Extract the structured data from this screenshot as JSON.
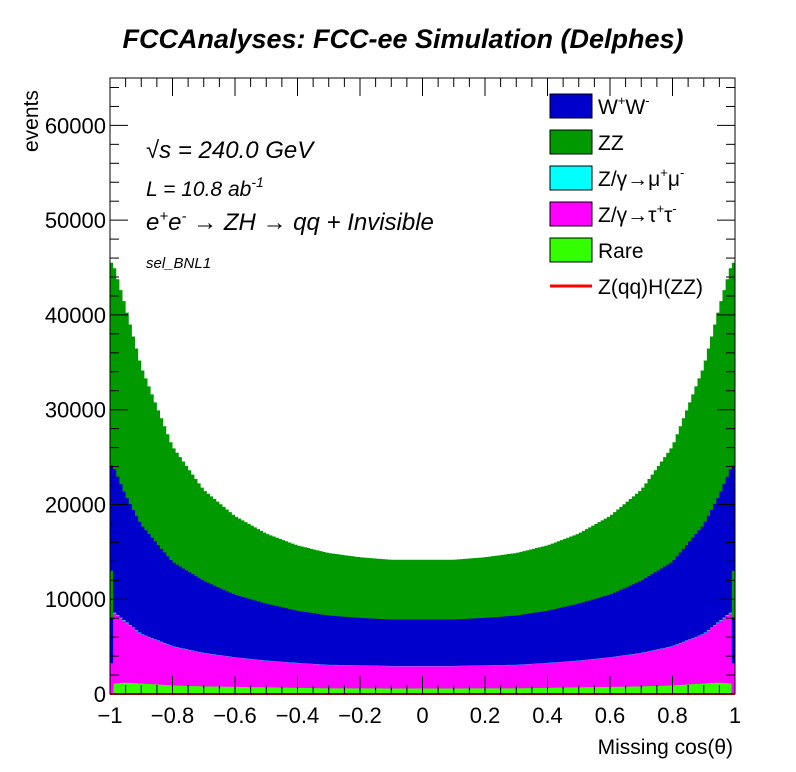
{
  "chart_data": {
    "type": "area",
    "title": "FCCAnalyses: FCC-ee Simulation (Delphes)",
    "xlabel": "Missing cos(θ)",
    "ylabel": "events",
    "xlim": [
      -1,
      1
    ],
    "ylim": [
      0,
      65000
    ],
    "x_ticks": [
      "−1",
      "−0.8",
      "−0.6",
      "−0.4",
      "−0.2",
      "0",
      "0.2",
      "0.4",
      "0.6",
      "0.8",
      "1"
    ],
    "y_ticks": [
      "0",
      "10000",
      "20000",
      "30000",
      "40000",
      "50000",
      "60000"
    ],
    "stacked": true,
    "legend_position": "top-right",
    "annotations": {
      "sqrt_s_symbol": "√s",
      "sqrt_s_value": " = 240.0 GeV",
      "lumi_prefix": "L = 10.8 ab",
      "lumi_exp": "-1",
      "process_e1": "e",
      "process_sup1": "+",
      "process_e2": "e",
      "process_sup2": "-",
      "process_rest": " → ZH  → qq + Invisible",
      "selection": "sel_BNL1"
    },
    "x": [
      -0.99,
      -0.95,
      -0.9,
      -0.8,
      -0.7,
      -0.6,
      -0.5,
      -0.4,
      -0.3,
      -0.2,
      -0.1,
      0.0,
      0.1,
      0.2,
      0.3,
      0.4,
      0.5,
      0.6,
      0.7,
      0.8,
      0.9,
      0.95,
      0.99
    ],
    "series": [
      {
        "name": "Rare",
        "color": "#33ff00",
        "values": [
          1100,
          1200,
          1100,
          900,
          800,
          750,
          700,
          650,
          600,
          600,
          580,
          580,
          580,
          600,
          600,
          650,
          700,
          750,
          800,
          900,
          1100,
          1200,
          1100
        ]
      },
      {
        "name": "Z/γ→τ⁺τ⁻",
        "color": "#ff00ff",
        "values": [
          7500,
          6400,
          5200,
          4100,
          3500,
          3100,
          2800,
          2600,
          2450,
          2400,
          2350,
          2350,
          2350,
          2400,
          2450,
          2600,
          2800,
          3100,
          3500,
          4100,
          5200,
          6400,
          7500
        ]
      },
      {
        "name": "Z/γ→μ⁺μ⁻",
        "color": "#00ffff",
        "values": [
          100,
          80,
          60,
          50,
          40,
          30,
          30,
          30,
          30,
          30,
          30,
          30,
          30,
          30,
          30,
          30,
          30,
          30,
          40,
          50,
          60,
          80,
          100
        ]
      },
      {
        "name": "W⁺W⁻",
        "color": "#0000cc",
        "values": [
          15400,
          13300,
          11500,
          8900,
          7600,
          6600,
          6000,
          5500,
          5200,
          5000,
          4900,
          4900,
          4900,
          5000,
          5200,
          5500,
          6000,
          6600,
          7600,
          8900,
          11500,
          13300,
          15400
        ]
      },
      {
        "name": "ZZ",
        "color": "#009900",
        "values": [
          21400,
          19900,
          16700,
          12200,
          9600,
          8300,
          7400,
          6900,
          6600,
          6400,
          6300,
          6300,
          6300,
          6400,
          6600,
          6900,
          7400,
          8300,
          9600,
          12200,
          16700,
          19900,
          21400
        ]
      },
      {
        "name": "Z(qq)H(ZZ)",
        "color": "#ff0000",
        "values": [
          5,
          5,
          5,
          5,
          5,
          5,
          5,
          5,
          5,
          5,
          5,
          5,
          5,
          5,
          5,
          5,
          5,
          5,
          5,
          5,
          5,
          5,
          5
        ]
      }
    ],
    "edge_bins": {
      "x": [
        -1.0,
        1.0
      ],
      "total": [
        13000,
        13000
      ]
    },
    "grid": false
  },
  "legend": [
    {
      "label_main": "W",
      "sup1": "+",
      "mid": "W",
      "sup2": "-",
      "color": "#0000cc",
      "kind": "box"
    },
    {
      "label_main": "ZZ",
      "color": "#009900",
      "kind": "box"
    },
    {
      "label_main": "Z/γ→μ",
      "sup1": "+",
      "mid": "μ",
      "sup2": "-",
      "color": "#00ffff",
      "kind": "box"
    },
    {
      "label_main": "Z/γ→τ",
      "sup1": "+",
      "mid": "τ",
      "sup2": "-",
      "color": "#ff00ff",
      "kind": "box"
    },
    {
      "label_main": "Rare",
      "color": "#33ff00",
      "kind": "box"
    },
    {
      "label_main": "Z(qq)H(ZZ)",
      "color": "#ff0000",
      "kind": "line"
    }
  ]
}
